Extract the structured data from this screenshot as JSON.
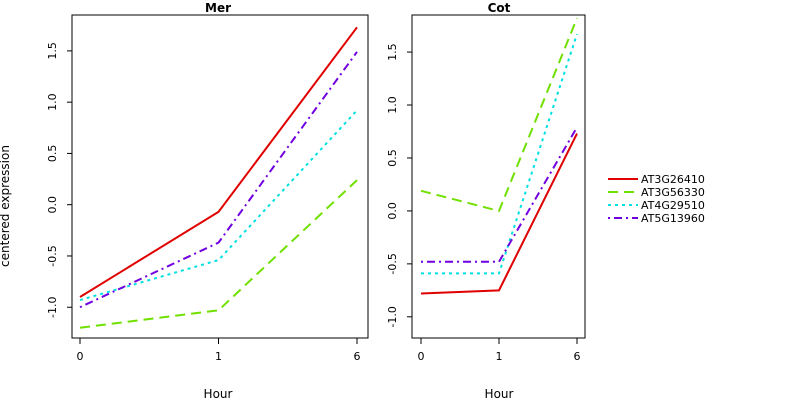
{
  "chart_data": {
    "type": "line",
    "ylabel": "centered expression",
    "panels": [
      {
        "title": "Mer",
        "xlabel": "Hour",
        "categories": [
          "0",
          "1",
          "6"
        ],
        "ylim": [
          -1.3,
          1.85
        ],
        "yticks": [
          -1.0,
          -0.5,
          0.0,
          0.5,
          1.0,
          1.5
        ],
        "series": [
          {
            "name": "AT3G26410",
            "values": [
              -0.9,
              -0.07,
              1.73
            ]
          },
          {
            "name": "AT3G56330",
            "values": [
              -1.2,
              -1.03,
              0.24
            ]
          },
          {
            "name": "AT4G29510",
            "values": [
              -0.93,
              -0.54,
              0.92
            ]
          },
          {
            "name": "AT5G13960",
            "values": [
              -1.0,
              -0.37,
              1.49
            ]
          }
        ]
      },
      {
        "title": "Cot",
        "xlabel": "Hour",
        "categories": [
          "0",
          "1",
          "6"
        ],
        "ylim": [
          -1.2,
          1.85
        ],
        "yticks": [
          -1.0,
          -0.5,
          0.0,
          0.5,
          1.0,
          1.5
        ],
        "series": [
          {
            "name": "AT3G26410",
            "values": [
              -0.78,
              -0.75,
              0.73
            ]
          },
          {
            "name": "AT3G56330",
            "values": [
              0.19,
              0.0,
              1.82
            ]
          },
          {
            "name": "AT4G29510",
            "values": [
              -0.59,
              -0.59,
              1.67
            ]
          },
          {
            "name": "AT5G13960",
            "values": [
              -0.48,
              -0.48,
              0.79
            ]
          }
        ]
      }
    ],
    "legend": {
      "placement": "right",
      "entries": [
        {
          "name": "AT3G26410",
          "color": "#e00000",
          "dash": "solid"
        },
        {
          "name": "AT3G56330",
          "color": "#70e000",
          "dash": "dashed"
        },
        {
          "name": "AT4G29510",
          "color": "#00e0e0",
          "dash": "dotted"
        },
        {
          "name": "AT5G13960",
          "color": "#7000e0",
          "dash": "dotdash"
        }
      ]
    }
  }
}
